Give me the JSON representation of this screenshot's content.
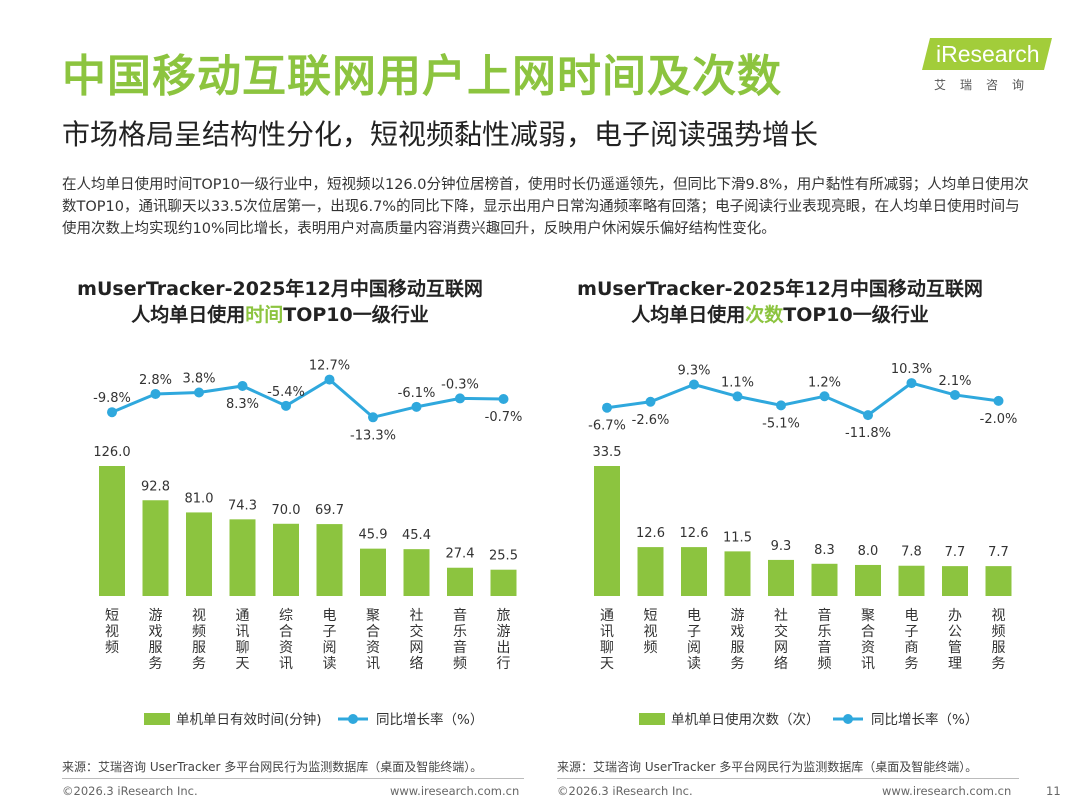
{
  "header": {
    "title": "中国移动互联网用户上网时间及次数",
    "subtitle": "市场格局呈结构性分化，短视频黏性减弱，电子阅读强势增长",
    "logo_text": "iResearch",
    "logo_cn": "艾瑞咨询"
  },
  "description": "在人均单日使用时间TOP10一级行业中，短视频以126.0分钟位居榜首，使用时长仍遥遥领先，但同比下滑9.8%，用户黏性有所减弱；人均单日使用次数TOP10，通讯聊天以33.5次位居第一，出现6.7%的同比下降，显示出用户日常沟通频率略有回落；电子阅读行业表现亮眼，在人均单日使用时间与使用次数上均实现约10%同比增长，表明用户对高质量内容消费兴趣回升，反映用户休闲娱乐偏好结构性变化。",
  "chart_data": [
    {
      "type": "bar",
      "title_line1": "mUserTracker-2025年12月中国移动互联网",
      "title_line2_pre": "人均单日使用",
      "title_line2_hl": "时间",
      "title_line2_post": "TOP10一级行业",
      "categories": [
        "短视频",
        "游戏服务",
        "视频服务",
        "通讯聊天",
        "综合资讯",
        "电子阅读",
        "聚合资讯",
        "社交网络",
        "音乐音频",
        "旅游出行"
      ],
      "series": [
        {
          "name": "单机单日有效时间(分钟)",
          "type": "bar",
          "values": [
            126.0,
            92.8,
            81.0,
            74.3,
            70.0,
            69.7,
            45.9,
            45.4,
            27.4,
            25.5
          ]
        },
        {
          "name": "同比增长率（%）",
          "type": "line",
          "values": [
            -9.8,
            2.8,
            3.8,
            8.3,
            -5.4,
            12.7,
            -13.3,
            -6.1,
            -0.3,
            -0.7
          ]
        }
      ],
      "bar_labels": [
        "126.0",
        "92.8",
        "81.0",
        "74.3",
        "70.0",
        "69.7",
        "45.9",
        "45.4",
        "27.4",
        "25.5"
      ],
      "line_labels": [
        "-9.8%",
        "2.8%",
        "3.8%",
        "8.3%",
        "-5.4%",
        "12.7%",
        "-13.3%",
        "-6.1%",
        "-0.3%",
        "-0.7%"
      ],
      "line_label_pos": [
        "above",
        "above",
        "above",
        "below",
        "above",
        "above",
        "below",
        "above",
        "above",
        "below"
      ],
      "source": "来源：艾瑞咨询 UserTracker 多平台网民行为监测数据库（桌面及智能终端）。"
    },
    {
      "type": "bar",
      "title_line1": "mUserTracker-2025年12月中国移动互联网",
      "title_line2_pre": "人均单日使用",
      "title_line2_hl": "次数",
      "title_line2_post": "TOP10一级行业",
      "categories": [
        "通讯聊天",
        "短视频",
        "电子阅读",
        "游戏服务",
        "社交网络",
        "音乐音频",
        "聚合资讯",
        "电子商务",
        "办公管理",
        "视频服务"
      ],
      "series": [
        {
          "name": "单机单日使用次数（次）",
          "type": "bar",
          "values": [
            33.5,
            12.6,
            12.6,
            11.5,
            9.3,
            8.3,
            8.0,
            7.8,
            7.7,
            7.7
          ]
        },
        {
          "name": "同比增长率（%）",
          "type": "line",
          "values": [
            -6.7,
            -2.6,
            9.3,
            1.1,
            -5.1,
            1.2,
            -11.8,
            10.3,
            2.1,
            -2.0
          ]
        }
      ],
      "bar_labels": [
        "33.5",
        "12.6",
        "12.6",
        "11.5",
        "9.3",
        "8.3",
        "8.0",
        "7.8",
        "7.7",
        "7.7"
      ],
      "line_labels": [
        "-6.7%",
        "-2.6%",
        "9.3%",
        "1.1%",
        "-5.1%",
        "1.2%",
        "-11.8%",
        "10.3%",
        "2.1%",
        "-2.0%"
      ],
      "line_label_pos": [
        "below",
        "below",
        "above",
        "above",
        "below",
        "above",
        "below",
        "above",
        "above",
        "below"
      ],
      "source": "来源：艾瑞咨询 UserTracker 多平台网民行为监测数据库（桌面及智能终端）。"
    }
  ],
  "colors": {
    "bar": "#8cc43f",
    "line": "#2fa8dd",
    "title": "#8cc43f"
  },
  "footer": {
    "copyright_left": "©2026.3 iResearch Inc.",
    "url_left": "www.iresearch.com.cn",
    "copyright_right": "©2026.3 iResearch Inc.",
    "url_right": "www.iresearch.com.cn",
    "page": "11"
  }
}
